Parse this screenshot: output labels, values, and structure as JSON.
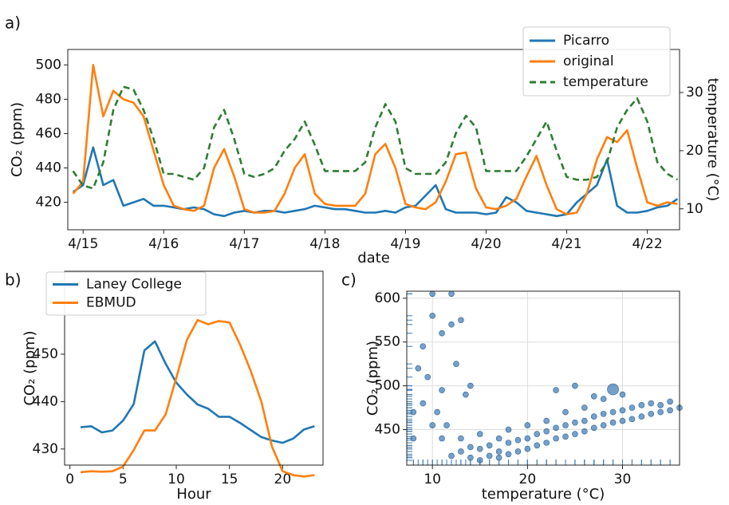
{
  "chart_data": [
    {
      "type": "line",
      "panel_label": "a)",
      "xlabel": "date",
      "ylabel": "CO₂ (ppm)",
      "y2label": "temperature (°C)",
      "x": [
        -0.125,
        0,
        0.125,
        0.25,
        0.375,
        0.5,
        0.625,
        0.75,
        0.875,
        1,
        1.125,
        1.25,
        1.375,
        1.5,
        1.625,
        1.75,
        1.875,
        2,
        2.125,
        2.25,
        2.375,
        2.5,
        2.625,
        2.75,
        2.875,
        3,
        3.125,
        3.25,
        3.375,
        3.5,
        3.625,
        3.75,
        3.875,
        4,
        4.125,
        4.25,
        4.375,
        4.5,
        4.625,
        4.75,
        4.875,
        5,
        5.125,
        5.25,
        5.375,
        5.5,
        5.625,
        5.75,
        5.875,
        6,
        6.125,
        6.25,
        6.375,
        6.5,
        6.625,
        6.75,
        6.875,
        7,
        7.125,
        7.25,
        7.375
      ],
      "xlim": [
        -0.19,
        7.4
      ],
      "xticks": [
        {
          "value": 0,
          "label": "4/15"
        },
        {
          "value": 1,
          "label": "4/16"
        },
        {
          "value": 2,
          "label": "4/17"
        },
        {
          "value": 3,
          "label": "4/18"
        },
        {
          "value": 4,
          "label": "4/19"
        },
        {
          "value": 5,
          "label": "4/20"
        },
        {
          "value": 6,
          "label": "4/21"
        },
        {
          "value": 7,
          "label": "4/22"
        }
      ],
      "ylim": [
        404,
        509
      ],
      "yticks": [
        420,
        440,
        460,
        480,
        500
      ],
      "y2lim": [
        6.4,
        37.4
      ],
      "y2ticks": [
        10,
        20,
        30
      ],
      "legend": "upper right",
      "series": [
        {
          "name": "Picarro",
          "color": "#1f77b4",
          "values": [
            426,
            430,
            452,
            430,
            433,
            418,
            420,
            422,
            418,
            418,
            417,
            416,
            417,
            416,
            413,
            412,
            414,
            415,
            414,
            415,
            415,
            414,
            415,
            416,
            418,
            417,
            416,
            416,
            415,
            414,
            414,
            415,
            414,
            417,
            418,
            424,
            430,
            416,
            414,
            414,
            414,
            413,
            414,
            423,
            420,
            415,
            414,
            413,
            412,
            413,
            420,
            425,
            430,
            445,
            418,
            414,
            414,
            415,
            417,
            418,
            422
          ]
        },
        {
          "name": "original",
          "color": "#ff7f0e",
          "values": [
            425,
            432,
            500,
            470,
            485,
            480,
            478,
            470,
            450,
            430,
            418,
            416,
            415,
            418,
            440,
            451,
            435,
            416,
            414,
            414,
            415,
            425,
            440,
            448,
            425,
            419,
            418,
            418,
            418,
            425,
            448,
            454,
            440,
            419,
            417,
            416,
            420,
            432,
            448,
            449,
            428,
            417,
            416,
            418,
            422,
            435,
            447,
            430,
            416,
            413,
            414,
            425,
            445,
            458,
            455,
            462,
            440,
            420,
            418,
            420,
            419
          ]
        },
        {
          "name": "temperature",
          "color": "#2e7d32",
          "axis": "y2",
          "dashed": true,
          "values": [
            16.5,
            14,
            13.5,
            18,
            27,
            31,
            30.5,
            27,
            22,
            16,
            16,
            15.5,
            15,
            17,
            24,
            27,
            22,
            16,
            15.5,
            16,
            17,
            20,
            22,
            25,
            21,
            16.5,
            16.5,
            16.5,
            16.5,
            18,
            24,
            28,
            25,
            17,
            16,
            16,
            16,
            18,
            23,
            26,
            24,
            16.5,
            16.5,
            16.5,
            16.5,
            19,
            22,
            25,
            20,
            15.5,
            15,
            15,
            15.5,
            18,
            24,
            27,
            29,
            25,
            18,
            16,
            15
          ]
        }
      ]
    },
    {
      "type": "line",
      "panel_label": "b)",
      "xlabel": "Hour",
      "ylabel": "CO₂ (ppm)",
      "x": [
        1,
        2,
        3,
        4,
        5,
        6,
        7,
        8,
        9,
        10,
        11,
        12,
        13,
        14,
        15,
        16,
        17,
        18,
        19,
        20,
        21,
        22,
        23
      ],
      "xlim": [
        -0.5,
        23.8
      ],
      "xticks": [
        0,
        5,
        10,
        15,
        20
      ],
      "ylim": [
        426.6,
        467.5
      ],
      "yticks": [
        430,
        440,
        450
      ],
      "legend": "upper left",
      "series": [
        {
          "name": "Laney College",
          "color": "#1f77b4",
          "values": [
            434.6,
            434.8,
            433.5,
            433.9,
            436,
            439.5,
            450.8,
            452.7,
            448,
            444,
            441.5,
            439.4,
            438.5,
            436.8,
            436.8,
            435.5,
            434,
            432.5,
            431.8,
            431.3,
            432.2,
            434.1,
            434.8
          ]
        },
        {
          "name": "EBMUD",
          "color": "#ff7f0e",
          "values": [
            425.1,
            425.3,
            425.2,
            425.3,
            426.3,
            429.8,
            433.9,
            433.9,
            437.3,
            445,
            453,
            457.2,
            456.3,
            457,
            456.7,
            452,
            446.5,
            440,
            430.5,
            425.3,
            424.5,
            424.2,
            424.5
          ]
        }
      ]
    },
    {
      "type": "scatter",
      "panel_label": "c)",
      "xlabel": "temperature (°C)",
      "ylabel": "CO₂ (ppm)",
      "xlim": [
        7.3,
        36
      ],
      "xticks": [
        10,
        20,
        30
      ],
      "ylim": [
        409.5,
        608
      ],
      "yticks": [
        450,
        500,
        550,
        600
      ],
      "grid": true,
      "rug": true,
      "series": [
        {
          "color": "#3a78b5",
          "marker_size": 3.5,
          "x": [
            12,
            13,
            13,
            14,
            14,
            15,
            15,
            15,
            16,
            16,
            17,
            17,
            17,
            18,
            18,
            18,
            19,
            19,
            20,
            20,
            20,
            21,
            21,
            22,
            22,
            22,
            23,
            23,
            24,
            24,
            24,
            25,
            25,
            26,
            26,
            26,
            27,
            27,
            28,
            28,
            28,
            29,
            29,
            30,
            30,
            31,
            31,
            32,
            32,
            33,
            33,
            34,
            34,
            35,
            35,
            36,
            23,
            25,
            27,
            30,
            8,
            8.5,
            9,
            10,
            10,
            11,
            11,
            12,
            12,
            9,
            10,
            11,
            9.5,
            12.5,
            13,
            13.5,
            8,
            10.5,
            14,
            11.5
          ],
          "values": [
            420,
            425,
            440,
            418,
            430,
            415,
            428,
            445,
            420,
            432,
            418,
            425,
            440,
            422,
            435,
            450,
            425,
            438,
            428,
            440,
            455,
            432,
            445,
            435,
            448,
            460,
            440,
            452,
            442,
            455,
            470,
            445,
            458,
            448,
            460,
            475,
            452,
            465,
            455,
            468,
            485,
            458,
            470,
            460,
            472,
            462,
            475,
            465,
            478,
            468,
            480,
            470,
            478,
            472,
            482,
            475,
            495,
            500,
            488,
            490,
            470,
            520,
            545,
            580,
            605,
            560,
            495,
            570,
            605,
            480,
            455,
            440,
            510,
            525,
            575,
            490,
            440,
            470,
            500,
            455
          ]
        },
        {
          "color": "#3a78b5",
          "marker_size": 7,
          "x": [
            29
          ],
          "values": [
            496
          ]
        }
      ]
    }
  ]
}
